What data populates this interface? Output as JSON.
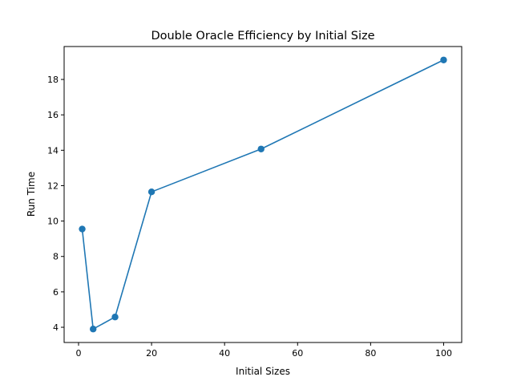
{
  "chart_data": {
    "type": "line",
    "title": "Double Oracle Efficiency by Initial Size",
    "xlabel": "Initial Sizes",
    "ylabel": "Run Time",
    "xlim": [
      -3.95,
      104.95
    ],
    "ylim": [
      3.14,
      19.86
    ],
    "xticks": [
      0,
      20,
      40,
      60,
      80,
      100
    ],
    "yticks": [
      4,
      6,
      8,
      10,
      12,
      14,
      16,
      18
    ],
    "grid": false,
    "legend": "none",
    "series": [
      {
        "x": [
          1,
          4,
          10,
          20,
          50,
          100
        ],
        "y": [
          9.55,
          3.9,
          4.58,
          11.65,
          14.07,
          19.1
        ],
        "color": "#1f77b4",
        "marker": "circle"
      }
    ]
  }
}
